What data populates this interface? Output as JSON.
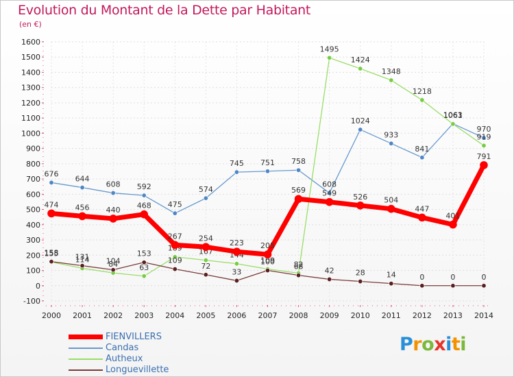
{
  "title": "Evolution du Montant de la Dette par Habitant",
  "subtitle": "(en €)",
  "logo": {
    "text": "Proxiti",
    "letters": [
      "P",
      "r",
      "o",
      "x",
      "i",
      "t",
      "i"
    ],
    "colors": [
      "#2a8fd6",
      "#f39200",
      "#7bb83b",
      "#e6332a",
      "#2a8fd6",
      "#f39200",
      "#7bb83b"
    ]
  },
  "chart_data": {
    "type": "line",
    "x": [
      "2000",
      "2001",
      "2002",
      "2003",
      "2004",
      "2005",
      "2006",
      "2007",
      "2008",
      "2009",
      "2010",
      "2011",
      "2012",
      "2013",
      "2014"
    ],
    "ylim": [
      -100,
      1600
    ],
    "yticks": [
      -100,
      0,
      100,
      200,
      300,
      400,
      500,
      600,
      700,
      800,
      900,
      1000,
      1100,
      1200,
      1300,
      1400,
      1500,
      1600
    ],
    "grid": true,
    "legend_position": "bottom-left",
    "series": [
      {
        "name": "Candas",
        "color": "#6699cc",
        "stroke_width": 1.3,
        "marker": 3.2,
        "marker_fill": "#4f86c6",
        "values": [
          676,
          644,
          608,
          592,
          475,
          574,
          745,
          751,
          758,
          608,
          1024,
          933,
          841,
          1063,
          970
        ],
        "labels": [
          "676",
          "644",
          "608",
          "592",
          "475",
          "574",
          "745",
          "751",
          "758",
          "608",
          "1024",
          "933",
          "841",
          "1063",
          "970"
        ]
      },
      {
        "name": "Autheux",
        "color": "#99dd66",
        "stroke_width": 1.3,
        "marker": 3.2,
        "marker_fill": "#77cc44",
        "values": [
          155,
          114,
          84,
          63,
          189,
          167,
          144,
          109,
          82,
          1495,
          1424,
          1348,
          1218,
          1061,
          919
        ],
        "labels": [
          "155",
          "114",
          "84",
          "63",
          "189",
          "167",
          "144",
          "109",
          "82",
          "1495",
          "1424",
          "1348",
          "1218",
          "1061",
          "919"
        ],
        "label_index": [
          0,
          1,
          2,
          3,
          4,
          5,
          6,
          7,
          8,
          9,
          10,
          11,
          12,
          13,
          14
        ]
      },
      {
        "name": "Longuevillette",
        "color": "#7a3a3a",
        "stroke_width": 1.3,
        "marker": 3.2,
        "marker_fill": "#5a1f1f",
        "values": [
          158,
          131,
          104,
          153,
          109,
          72,
          33,
          100,
          68,
          42,
          28,
          14,
          0,
          0,
          0
        ],
        "labels": [
          "158",
          "131",
          "104",
          "153",
          "109",
          "72",
          "33",
          "100",
          "68",
          "42",
          "28",
          "14",
          "0",
          "0",
          "0"
        ]
      },
      {
        "name": "FIENVILLERS",
        "color": "#ff0000",
        "stroke_width": 7,
        "marker": 5.5,
        "marker_fill": "#ff0000",
        "values": [
          474,
          456,
          440,
          468,
          267,
          254,
          223,
          205,
          569,
          549,
          526,
          504,
          447,
          401,
          791
        ],
        "labels": [
          "474",
          "456",
          "440",
          "468",
          "267",
          "254",
          "223",
          "205",
          "569",
          "549",
          "526",
          "504",
          "447",
          "401",
          "791"
        ]
      }
    ]
  }
}
